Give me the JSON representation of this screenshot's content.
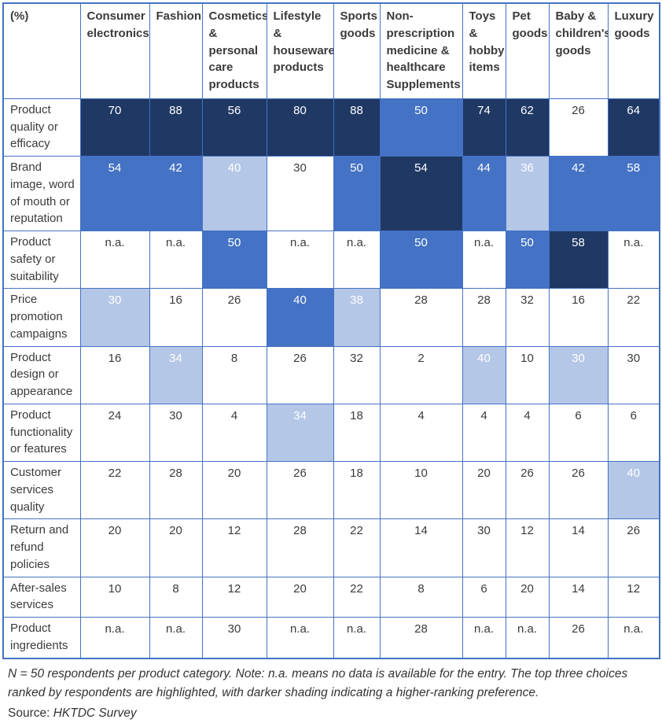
{
  "chart_data": {
    "type": "heatmap",
    "unit_label": "(%)",
    "columns": [
      "Consumer electronics",
      "Fashion",
      "Cosmetics & personal care products",
      "Lifestyle & houseware products",
      "Sports goods",
      "Non-prescription medicine & healthcare Supplements",
      "Toys & hobby items",
      "Pet goods",
      "Baby & children's goods",
      "Luxury goods"
    ],
    "rows": [
      {
        "label": "Product quality or efficacy",
        "values": [
          "70",
          "88",
          "56",
          "80",
          "88",
          "50",
          "74",
          "62",
          "26",
          "64"
        ],
        "shades": [
          3,
          3,
          3,
          3,
          3,
          2,
          3,
          3,
          0,
          3
        ]
      },
      {
        "label": "Brand image, word of mouth or reputation",
        "values": [
          "54",
          "42",
          "40",
          "30",
          "50",
          "54",
          "44",
          "36",
          "42",
          "58"
        ],
        "shades": [
          2,
          2,
          1,
          0,
          2,
          3,
          2,
          1,
          2,
          2
        ]
      },
      {
        "label": "Product safety or suitability",
        "values": [
          "n.a.",
          "n.a.",
          "50",
          "n.a.",
          "n.a.",
          "50",
          "n.a.",
          "50",
          "58",
          "n.a."
        ],
        "shades": [
          0,
          0,
          2,
          0,
          0,
          2,
          0,
          2,
          3,
          0
        ]
      },
      {
        "label": "Price promotion campaigns",
        "values": [
          "30",
          "16",
          "26",
          "40",
          "38",
          "28",
          "28",
          "32",
          "16",
          "22"
        ],
        "shades": [
          1,
          0,
          0,
          2,
          1,
          0,
          0,
          0,
          0,
          0
        ]
      },
      {
        "label": "Product design or appearance",
        "values": [
          "16",
          "34",
          "8",
          "26",
          "32",
          "2",
          "40",
          "10",
          "30",
          "30"
        ],
        "shades": [
          0,
          1,
          0,
          0,
          0,
          0,
          1,
          0,
          1,
          0
        ]
      },
      {
        "label": "Product functionality or features",
        "values": [
          "24",
          "30",
          "4",
          "34",
          "18",
          "4",
          "4",
          "4",
          "6",
          "6"
        ],
        "shades": [
          0,
          0,
          0,
          1,
          0,
          0,
          0,
          0,
          0,
          0
        ]
      },
      {
        "label": "Customer services quality",
        "values": [
          "22",
          "28",
          "20",
          "26",
          "18",
          "10",
          "20",
          "26",
          "26",
          "40"
        ],
        "shades": [
          0,
          0,
          0,
          0,
          0,
          0,
          0,
          0,
          0,
          1
        ]
      },
      {
        "label": "Return and refund policies",
        "values": [
          "20",
          "20",
          "12",
          "28",
          "22",
          "14",
          "30",
          "12",
          "14",
          "26"
        ],
        "shades": [
          0,
          0,
          0,
          0,
          0,
          0,
          0,
          0,
          0,
          0
        ]
      },
      {
        "label": "After-sales services",
        "values": [
          "10",
          "8",
          "12",
          "20",
          "22",
          "8",
          "6",
          "20",
          "14",
          "12"
        ],
        "shades": [
          0,
          0,
          0,
          0,
          0,
          0,
          0,
          0,
          0,
          0
        ]
      },
      {
        "label": "Product ingredients",
        "values": [
          "n.a.",
          "n.a.",
          "30",
          "n.a.",
          "n.a.",
          "28",
          "n.a.",
          "n.a.",
          "26",
          "n.a."
        ],
        "shades": [
          0,
          0,
          0,
          0,
          0,
          0,
          0,
          0,
          0,
          0
        ]
      }
    ],
    "shade_legend": {
      "3": "first-rank dark",
      "2": "second-rank medium",
      "1": "third-rank light",
      "0": "not highlighted"
    },
    "colors": {
      "dark": "#1f3864",
      "medium": "#4472c4",
      "light": "#b4c7e7",
      "border": "#4472c4",
      "text": "#3b3b3b",
      "text_on_shade": "#ffffff"
    }
  },
  "footer": {
    "note": "N = 50 respondents per product category. Note: n.a. means no data is available for the entry. The top three choices ranked by respondents are highlighted, with darker shading indicating a higher-ranking preference.",
    "source_label": "Source: ",
    "source_value": "HKTDC Survey"
  }
}
